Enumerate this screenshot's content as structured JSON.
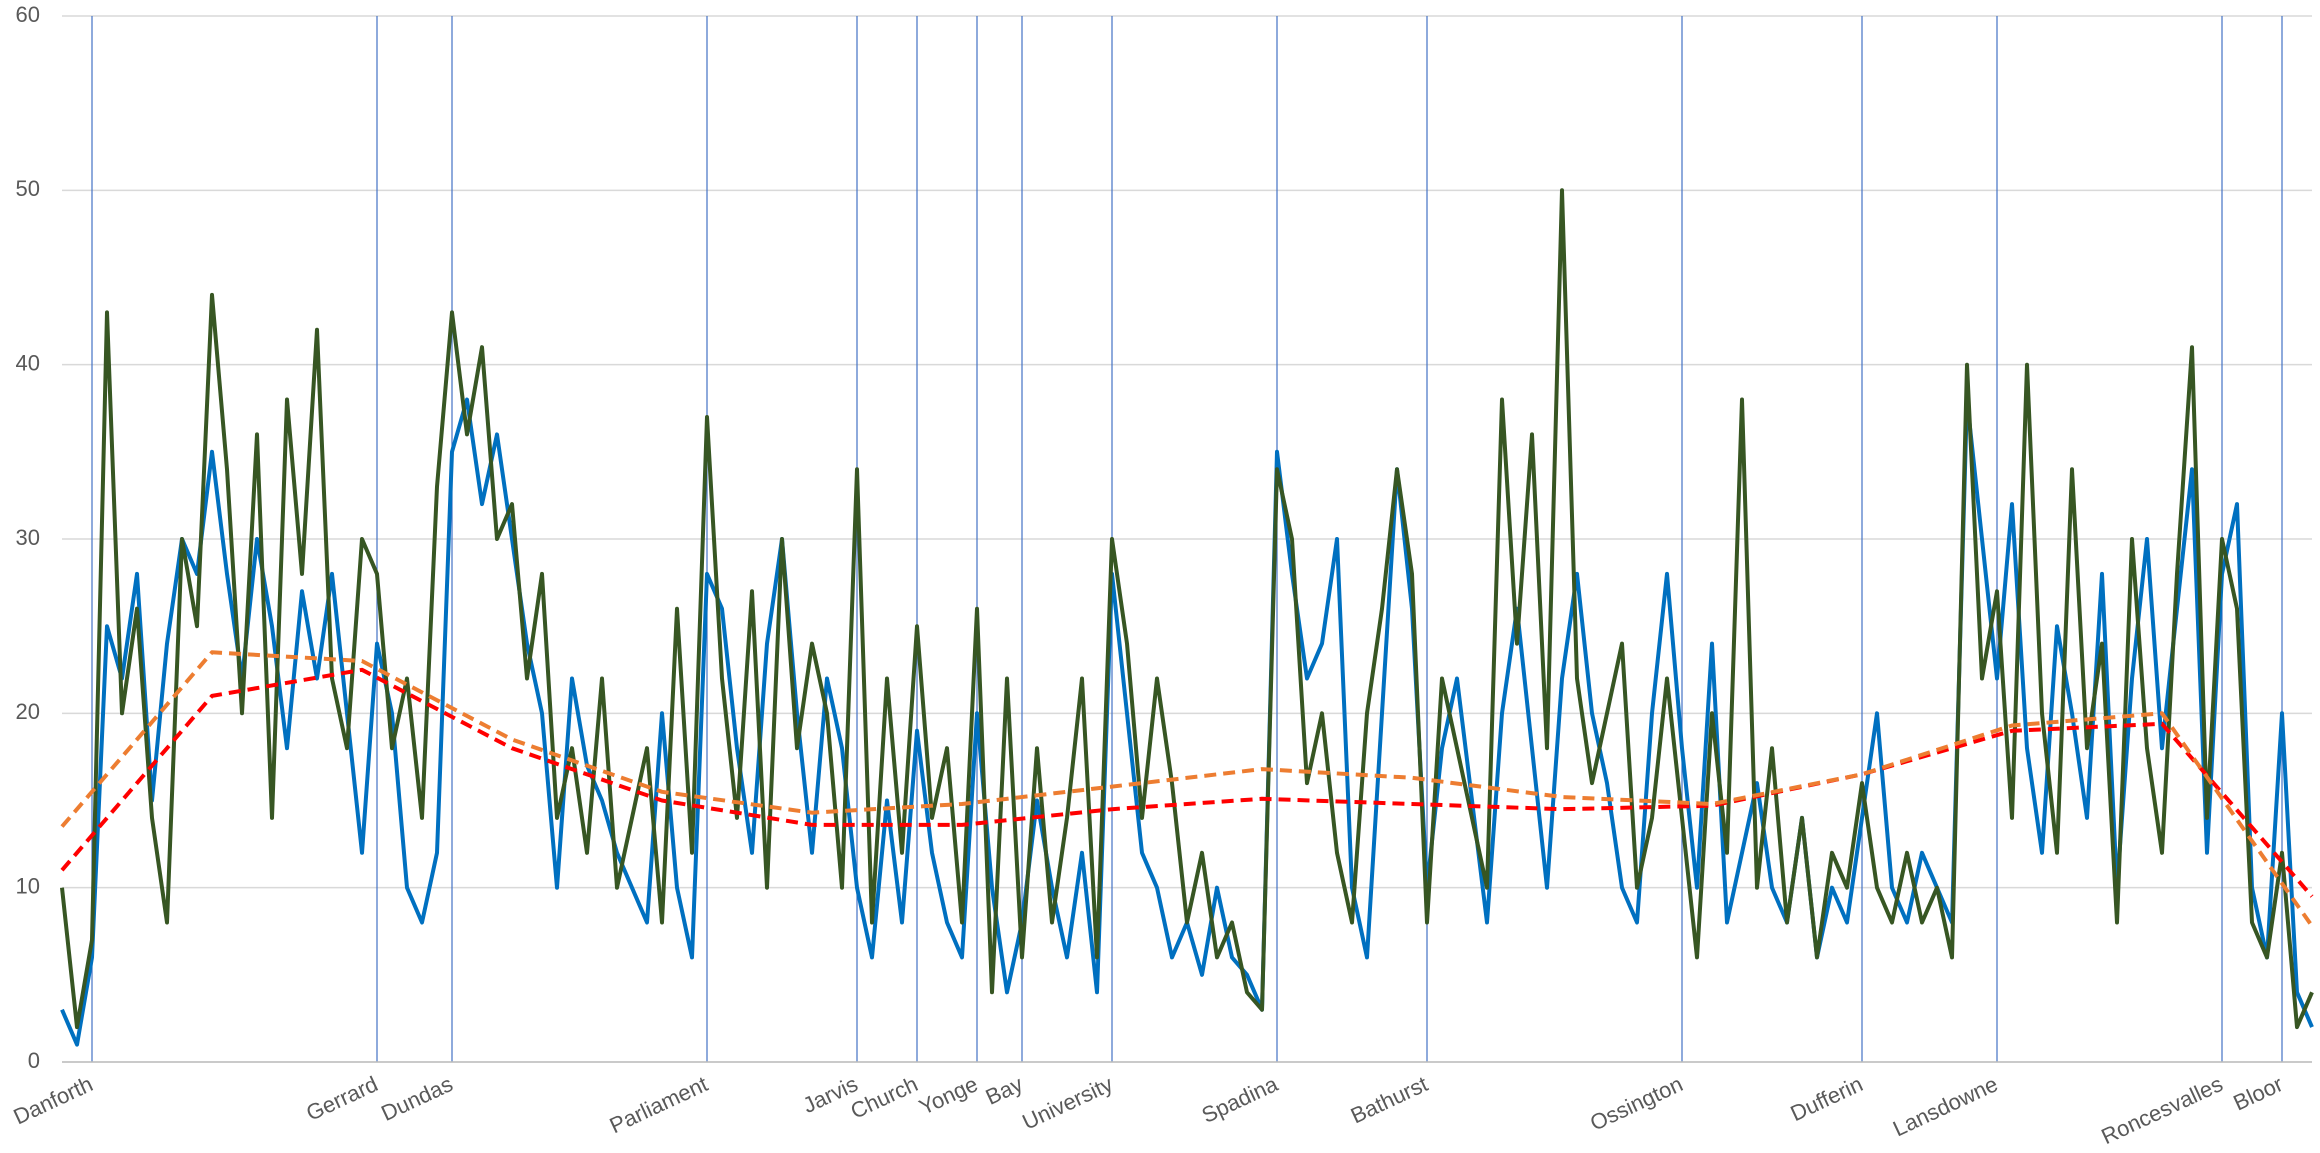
{
  "chart_data": {
    "type": "line",
    "xlim": [
      0,
      150
    ],
    "ylim": [
      0,
      60
    ],
    "yticks": [
      0,
      10,
      20,
      30,
      40,
      50,
      60
    ],
    "grid": true,
    "xticks": [
      {
        "value": 2,
        "label": "Danforth"
      },
      {
        "value": 21,
        "label": "Gerrard"
      },
      {
        "value": 26,
        "label": "Dundas"
      },
      {
        "value": 43,
        "label": "Parliament"
      },
      {
        "value": 53,
        "label": "Jarvis"
      },
      {
        "value": 57,
        "label": "Church"
      },
      {
        "value": 61,
        "label": "Yonge"
      },
      {
        "value": 64,
        "label": "Bay"
      },
      {
        "value": 70,
        "label": "University"
      },
      {
        "value": 81,
        "label": "Spadina"
      },
      {
        "value": 91,
        "label": "Bathurst"
      },
      {
        "value": 108,
        "label": "Ossington"
      },
      {
        "value": 120,
        "label": "Dufferin"
      },
      {
        "value": 129,
        "label": "Lansdowne"
      },
      {
        "value": 144,
        "label": "Roncesvalles"
      },
      {
        "value": 148,
        "label": "Bloor"
      }
    ],
    "x": [
      0,
      1,
      2,
      3,
      4,
      5,
      6,
      7,
      8,
      9,
      10,
      11,
      12,
      13,
      14,
      15,
      16,
      17,
      18,
      19,
      20,
      21,
      22,
      23,
      24,
      25,
      26,
      27,
      28,
      29,
      30,
      31,
      32,
      33,
      34,
      35,
      36,
      37,
      38,
      39,
      40,
      41,
      42,
      43,
      44,
      45,
      46,
      47,
      48,
      49,
      50,
      51,
      52,
      53,
      54,
      55,
      56,
      57,
      58,
      59,
      60,
      61,
      62,
      63,
      64,
      65,
      66,
      67,
      68,
      69,
      70,
      71,
      72,
      73,
      74,
      75,
      76,
      77,
      78,
      79,
      80,
      81,
      82,
      83,
      84,
      85,
      86,
      87,
      88,
      89,
      90,
      91,
      92,
      93,
      94,
      95,
      96,
      97,
      98,
      99,
      100,
      101,
      102,
      103,
      104,
      105,
      106,
      107,
      108,
      109,
      110,
      111,
      112,
      113,
      114,
      115,
      116,
      117,
      118,
      119,
      120,
      121,
      122,
      123,
      124,
      125,
      126,
      127,
      128,
      129,
      130,
      131,
      132,
      133,
      134,
      135,
      136,
      137,
      138,
      139,
      140,
      141,
      142,
      143,
      144,
      145,
      146,
      147,
      148,
      149,
      150
    ],
    "series": [
      {
        "color": "#0070c0",
        "values": [
          3,
          1,
          6,
          25,
          22,
          28,
          15,
          24,
          30,
          28,
          35,
          28,
          22,
          30,
          25,
          18,
          27,
          22,
          28,
          20,
          12,
          24,
          20,
          10,
          8,
          12,
          35,
          38,
          32,
          36,
          30,
          24,
          20,
          10,
          22,
          17,
          15,
          12,
          10,
          8,
          20,
          10,
          6,
          28,
          26,
          18,
          12,
          24,
          30,
          20,
          12,
          22,
          18,
          10,
          6,
          15,
          8,
          19,
          12,
          8,
          6,
          20,
          10,
          4,
          8,
          15,
          10,
          6,
          12,
          4,
          28,
          20,
          12,
          10,
          6,
          8,
          5,
          10,
          6,
          5,
          3,
          35,
          28,
          22,
          24,
          30,
          10,
          6,
          20,
          34,
          26,
          10,
          18,
          22,
          15,
          8,
          20,
          26,
          18,
          10,
          22,
          28,
          20,
          16,
          10,
          8,
          20,
          28,
          18,
          10,
          24,
          8,
          12,
          16,
          10,
          8,
          14,
          6,
          10,
          8,
          14,
          20,
          10,
          8,
          12,
          10,
          8,
          38,
          30,
          22,
          32,
          18,
          12,
          25,
          20,
          14,
          28,
          10,
          22,
          30,
          18,
          26,
          34,
          12,
          28,
          32,
          10,
          6,
          20,
          4,
          2
        ]
      },
      {
        "color": "#375623",
        "values": [
          10,
          2,
          7,
          43,
          20,
          26,
          14,
          8,
          30,
          25,
          44,
          34,
          20,
          36,
          14,
          38,
          28,
          42,
          22,
          18,
          30,
          28,
          18,
          22,
          14,
          33,
          43,
          36,
          41,
          30,
          32,
          22,
          28,
          14,
          18,
          12,
          22,
          10,
          14,
          18,
          8,
          26,
          12,
          37,
          22,
          14,
          27,
          10,
          30,
          18,
          24,
          20,
          10,
          34,
          8,
          22,
          12,
          25,
          14,
          18,
          8,
          26,
          4,
          22,
          6,
          18,
          8,
          14,
          22,
          6,
          30,
          24,
          14,
          22,
          16,
          8,
          12,
          6,
          8,
          4,
          3,
          34,
          30,
          16,
          20,
          12,
          8,
          20,
          26,
          34,
          28,
          8,
          22,
          18,
          14,
          10,
          38,
          24,
          36,
          18,
          50,
          22,
          16,
          20,
          24,
          10,
          14,
          22,
          14,
          6,
          20,
          12,
          38,
          10,
          18,
          8,
          14,
          6,
          12,
          10,
          16,
          10,
          8,
          12,
          8,
          10,
          6,
          40,
          22,
          27,
          14,
          40,
          20,
          12,
          34,
          18,
          24,
          8,
          30,
          18,
          12,
          28,
          41,
          14,
          30,
          26,
          8,
          6,
          12,
          2,
          4
        ]
      },
      {
        "color": "#ff0000",
        "dashed": true,
        "x": [
          0,
          10,
          20,
          30,
          40,
          50,
          60,
          70,
          80,
          90,
          100,
          110,
          120,
          130,
          140,
          150
        ],
        "values": [
          11,
          21,
          22.5,
          18,
          15,
          13.6,
          13.6,
          14.5,
          15.1,
          14.8,
          14.5,
          14.7,
          16.5,
          19,
          19.4,
          9.5
        ]
      },
      {
        "color": "#ed7d31",
        "dashed": true,
        "x": [
          0,
          10,
          20,
          30,
          40,
          50,
          60,
          70,
          80,
          90,
          100,
          110,
          120,
          130,
          140,
          150
        ],
        "values": [
          13.5,
          23.5,
          23,
          18.5,
          15.5,
          14.3,
          14.8,
          15.8,
          16.8,
          16.3,
          15.2,
          14.8,
          16.5,
          19.3,
          20,
          7.8
        ]
      }
    ]
  }
}
